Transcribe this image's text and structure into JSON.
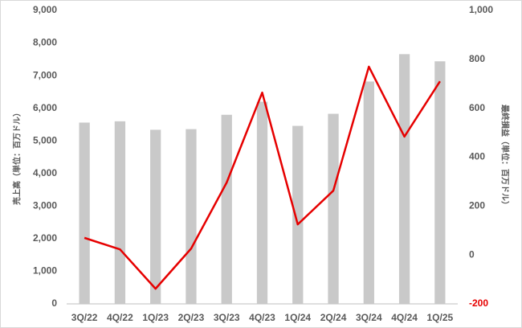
{
  "chart_data": {
    "type": "combo",
    "categories": [
      "3Q/22",
      "4Q/22",
      "1Q/23",
      "2Q/23",
      "3Q/23",
      "4Q/23",
      "1Q/24",
      "2Q/24",
      "3Q/24",
      "4Q/24",
      "1Q/25"
    ],
    "series": [
      {
        "type": "bar",
        "color": "#c9c9c9",
        "values": [
          5560,
          5600,
          5340,
          5360,
          5800,
          6200,
          5460,
          5830,
          6820,
          7660,
          7440
        ]
      },
      {
        "type": "line",
        "color": "#e60000",
        "axis": "y2",
        "values": [
          70,
          23,
          -138,
          26,
          296,
          664,
          125,
          263,
          770,
          484,
          710
        ]
      }
    ],
    "ylabel": "売上高（単位：百万ドル）",
    "y2label": "最終損益（単位：百万ドル）",
    "ylim": [
      0,
      9000
    ],
    "yticks": [
      0,
      {
        "value": 1000,
        "label": "1,000"
      },
      {
        "value": 2000,
        "label": "2,000"
      },
      {
        "value": 3000,
        "label": "3,000"
      },
      {
        "value": 4000,
        "label": "4,000"
      },
      {
        "value": 5000,
        "label": "5,000"
      },
      {
        "value": 6000,
        "label": "6,000"
      },
      {
        "value": 7000,
        "label": "7,000"
      },
      {
        "value": 8000,
        "label": "8,000"
      },
      {
        "value": 9000,
        "label": "9,000"
      }
    ],
    "y2lim": [
      -200,
      1000
    ],
    "y2ticks": [
      -200,
      0,
      200,
      400,
      600,
      800,
      {
        "value": 1000,
        "label": "1,000"
      }
    ],
    "grid": false
  }
}
